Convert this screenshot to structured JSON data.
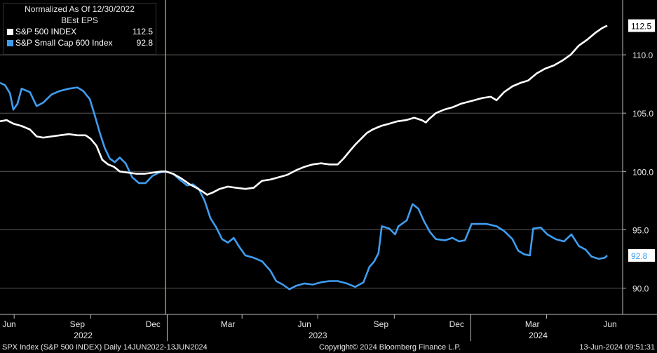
{
  "chart_data": {
    "type": "line",
    "title": "Normalized As Of 12/30/2022",
    "subtitle": "BEst EPS",
    "x_range": [
      "2022-06-14",
      "2024-06-13"
    ],
    "ylim": [
      88,
      114
    ],
    "y_ticks": [
      "90.0",
      "95.0",
      "100.0",
      "105.0",
      "110.0"
    ],
    "x_tick_labels": [
      "Jun",
      "Sep",
      "Dec",
      "Mar",
      "Jun",
      "Sep",
      "Dec",
      "Mar",
      "Jun"
    ],
    "x_year_labels": [
      "2022",
      "2023",
      "2024"
    ],
    "grid": true,
    "legend_position": "top-left",
    "vertical_marker_date": "2022-12-30",
    "series": [
      {
        "name": "S&P 500 INDEX",
        "color": "#ffffff",
        "last_value_label": "112.5",
        "points": [
          [
            "2022-06-14",
            104.3
          ],
          [
            "2022-06-22",
            104.4
          ],
          [
            "2022-06-30",
            104.1
          ],
          [
            "2022-07-10",
            103.9
          ],
          [
            "2022-07-20",
            103.6
          ],
          [
            "2022-07-28",
            103.0
          ],
          [
            "2022-08-05",
            102.9
          ],
          [
            "2022-08-15",
            103.0
          ],
          [
            "2022-08-25",
            103.1
          ],
          [
            "2022-09-05",
            103.2
          ],
          [
            "2022-09-15",
            103.1
          ],
          [
            "2022-09-25",
            103.1
          ],
          [
            "2022-10-01",
            102.8
          ],
          [
            "2022-10-08",
            102.2
          ],
          [
            "2022-10-15",
            101.0
          ],
          [
            "2022-10-22",
            100.6
          ],
          [
            "2022-10-29",
            100.4
          ],
          [
            "2022-11-05",
            100.0
          ],
          [
            "2022-11-15",
            99.9
          ],
          [
            "2022-11-25",
            99.8
          ],
          [
            "2022-12-05",
            99.8
          ],
          [
            "2022-12-15",
            99.9
          ],
          [
            "2022-12-25",
            100.0
          ],
          [
            "2022-12-30",
            100.0
          ],
          [
            "2023-01-08",
            99.8
          ],
          [
            "2023-01-18",
            99.4
          ],
          [
            "2023-01-28",
            98.9
          ],
          [
            "2023-02-05",
            98.6
          ],
          [
            "2023-02-12",
            98.3
          ],
          [
            "2023-02-18",
            98.0
          ],
          [
            "2023-02-25",
            98.2
          ],
          [
            "2023-03-05",
            98.5
          ],
          [
            "2023-03-15",
            98.7
          ],
          [
            "2023-03-25",
            98.6
          ],
          [
            "2023-04-05",
            98.5
          ],
          [
            "2023-04-15",
            98.6
          ],
          [
            "2023-04-25",
            99.2
          ],
          [
            "2023-05-05",
            99.3
          ],
          [
            "2023-05-15",
            99.5
          ],
          [
            "2023-05-25",
            99.7
          ],
          [
            "2023-06-05",
            100.1
          ],
          [
            "2023-06-15",
            100.4
          ],
          [
            "2023-06-25",
            100.6
          ],
          [
            "2023-07-05",
            100.7
          ],
          [
            "2023-07-15",
            100.6
          ],
          [
            "2023-07-25",
            100.6
          ],
          [
            "2023-08-01",
            101.1
          ],
          [
            "2023-08-08",
            101.7
          ],
          [
            "2023-08-15",
            102.3
          ],
          [
            "2023-08-22",
            102.8
          ],
          [
            "2023-08-29",
            103.3
          ],
          [
            "2023-09-05",
            103.6
          ],
          [
            "2023-09-15",
            103.9
          ],
          [
            "2023-09-25",
            104.1
          ],
          [
            "2023-10-05",
            104.3
          ],
          [
            "2023-10-15",
            104.4
          ],
          [
            "2023-10-25",
            104.6
          ],
          [
            "2023-11-03",
            104.4
          ],
          [
            "2023-11-08",
            104.2
          ],
          [
            "2023-11-12",
            104.5
          ],
          [
            "2023-11-20",
            105.0
          ],
          [
            "2023-11-30",
            105.3
          ],
          [
            "2023-12-10",
            105.5
          ],
          [
            "2023-12-20",
            105.8
          ],
          [
            "2024-01-05",
            106.1
          ],
          [
            "2024-01-15",
            106.3
          ],
          [
            "2024-01-25",
            106.4
          ],
          [
            "2024-02-01",
            106.1
          ],
          [
            "2024-02-10",
            106.8
          ],
          [
            "2024-02-20",
            107.3
          ],
          [
            "2024-03-01",
            107.6
          ],
          [
            "2024-03-10",
            107.8
          ],
          [
            "2024-03-20",
            108.4
          ],
          [
            "2024-03-30",
            108.8
          ],
          [
            "2024-04-10",
            109.1
          ],
          [
            "2024-04-20",
            109.5
          ],
          [
            "2024-04-30",
            110.0
          ],
          [
            "2024-05-10",
            110.8
          ],
          [
            "2024-05-20",
            111.3
          ],
          [
            "2024-05-30",
            111.9
          ],
          [
            "2024-06-07",
            112.3
          ],
          [
            "2024-06-13",
            112.5
          ]
        ]
      },
      {
        "name": "S&P Small Cap 600 Index",
        "color": "#3f9df0",
        "last_value_label": "92.8",
        "points": [
          [
            "2022-06-14",
            107.6
          ],
          [
            "2022-06-20",
            107.4
          ],
          [
            "2022-06-26",
            106.7
          ],
          [
            "2022-06-30",
            105.3
          ],
          [
            "2022-07-05",
            105.8
          ],
          [
            "2022-07-10",
            107.1
          ],
          [
            "2022-07-20",
            106.8
          ],
          [
            "2022-07-28",
            105.6
          ],
          [
            "2022-08-05",
            105.9
          ],
          [
            "2022-08-15",
            106.6
          ],
          [
            "2022-08-25",
            106.9
          ],
          [
            "2022-09-05",
            107.1
          ],
          [
            "2022-09-15",
            107.2
          ],
          [
            "2022-09-22",
            106.9
          ],
          [
            "2022-09-30",
            106.2
          ],
          [
            "2022-10-06",
            104.8
          ],
          [
            "2022-10-12",
            103.3
          ],
          [
            "2022-10-18",
            102.0
          ],
          [
            "2022-10-24",
            101.1
          ],
          [
            "2022-10-30",
            100.8
          ],
          [
            "2022-11-05",
            101.2
          ],
          [
            "2022-11-12",
            100.7
          ],
          [
            "2022-11-20",
            99.5
          ],
          [
            "2022-11-28",
            99.0
          ],
          [
            "2022-12-06",
            99.0
          ],
          [
            "2022-12-14",
            99.6
          ],
          [
            "2022-12-22",
            99.9
          ],
          [
            "2022-12-30",
            100.0
          ],
          [
            "2023-01-08",
            99.8
          ],
          [
            "2023-01-16",
            99.3
          ],
          [
            "2023-01-25",
            98.8
          ],
          [
            "2023-02-01",
            98.9
          ],
          [
            "2023-02-08",
            98.5
          ],
          [
            "2023-02-15",
            97.5
          ],
          [
            "2023-02-22",
            96.0
          ],
          [
            "2023-03-01",
            95.2
          ],
          [
            "2023-03-08",
            94.2
          ],
          [
            "2023-03-15",
            93.9
          ],
          [
            "2023-03-22",
            94.3
          ],
          [
            "2023-03-28",
            93.6
          ],
          [
            "2023-04-05",
            92.8
          ],
          [
            "2023-04-15",
            92.6
          ],
          [
            "2023-04-25",
            92.3
          ],
          [
            "2023-05-05",
            91.5
          ],
          [
            "2023-05-12",
            90.6
          ],
          [
            "2023-05-20",
            90.3
          ],
          [
            "2023-05-28",
            89.9
          ],
          [
            "2023-06-05",
            90.2
          ],
          [
            "2023-06-15",
            90.4
          ],
          [
            "2023-06-25",
            90.3
          ],
          [
            "2023-07-05",
            90.5
          ],
          [
            "2023-07-15",
            90.6
          ],
          [
            "2023-07-25",
            90.6
          ],
          [
            "2023-08-05",
            90.4
          ],
          [
            "2023-08-15",
            90.1
          ],
          [
            "2023-08-25",
            90.5
          ],
          [
            "2023-09-01",
            91.8
          ],
          [
            "2023-09-07",
            92.3
          ],
          [
            "2023-09-12",
            93.0
          ],
          [
            "2023-09-16",
            95.3
          ],
          [
            "2023-09-25",
            95.1
          ],
          [
            "2023-10-02",
            94.6
          ],
          [
            "2023-10-06",
            95.3
          ],
          [
            "2023-10-16",
            95.8
          ],
          [
            "2023-10-23",
            97.2
          ],
          [
            "2023-10-30",
            96.8
          ],
          [
            "2023-11-06",
            95.7
          ],
          [
            "2023-11-13",
            94.8
          ],
          [
            "2023-11-20",
            94.2
          ],
          [
            "2023-12-01",
            94.1
          ],
          [
            "2023-12-10",
            94.3
          ],
          [
            "2023-12-18",
            94.0
          ],
          [
            "2023-12-25",
            94.1
          ],
          [
            "2024-01-02",
            95.5
          ],
          [
            "2024-01-10",
            95.5
          ],
          [
            "2024-01-20",
            95.5
          ],
          [
            "2024-02-01",
            95.3
          ],
          [
            "2024-02-10",
            94.9
          ],
          [
            "2024-02-20",
            94.2
          ],
          [
            "2024-02-27",
            93.2
          ],
          [
            "2024-03-05",
            92.9
          ],
          [
            "2024-03-12",
            92.8
          ],
          [
            "2024-03-16",
            95.1
          ],
          [
            "2024-03-25",
            95.2
          ],
          [
            "2024-04-02",
            94.6
          ],
          [
            "2024-04-12",
            94.2
          ],
          [
            "2024-04-22",
            94.0
          ],
          [
            "2024-05-01",
            94.6
          ],
          [
            "2024-05-10",
            93.6
          ],
          [
            "2024-05-18",
            93.3
          ],
          [
            "2024-05-25",
            92.7
          ],
          [
            "2024-06-03",
            92.5
          ],
          [
            "2024-06-10",
            92.6
          ],
          [
            "2024-06-13",
            92.8
          ]
        ]
      }
    ]
  },
  "legend": {
    "title": "Normalized As Of 12/30/2022",
    "subtitle": "BEst EPS",
    "items": [
      {
        "name": "S&P 500 INDEX",
        "value": "112.5",
        "color": "#ffffff"
      },
      {
        "name": "S&P Small Cap 600 Index",
        "value": "92.8",
        "color": "#3f9df0"
      }
    ]
  },
  "footer": {
    "left": "SPX Index (S&P 500 INDEX)  Daily 14JUN2022-13JUN2024",
    "center": "Copyright© 2024 Bloomberg Finance L.P.",
    "right": "13-Jun-2024 09:51:31"
  },
  "colors": {
    "background": "#000000",
    "grid": "#5a5a5a",
    "marker": "#7dbb1f",
    "spx": "#ffffff",
    "small_cap": "#3f9df0"
  }
}
